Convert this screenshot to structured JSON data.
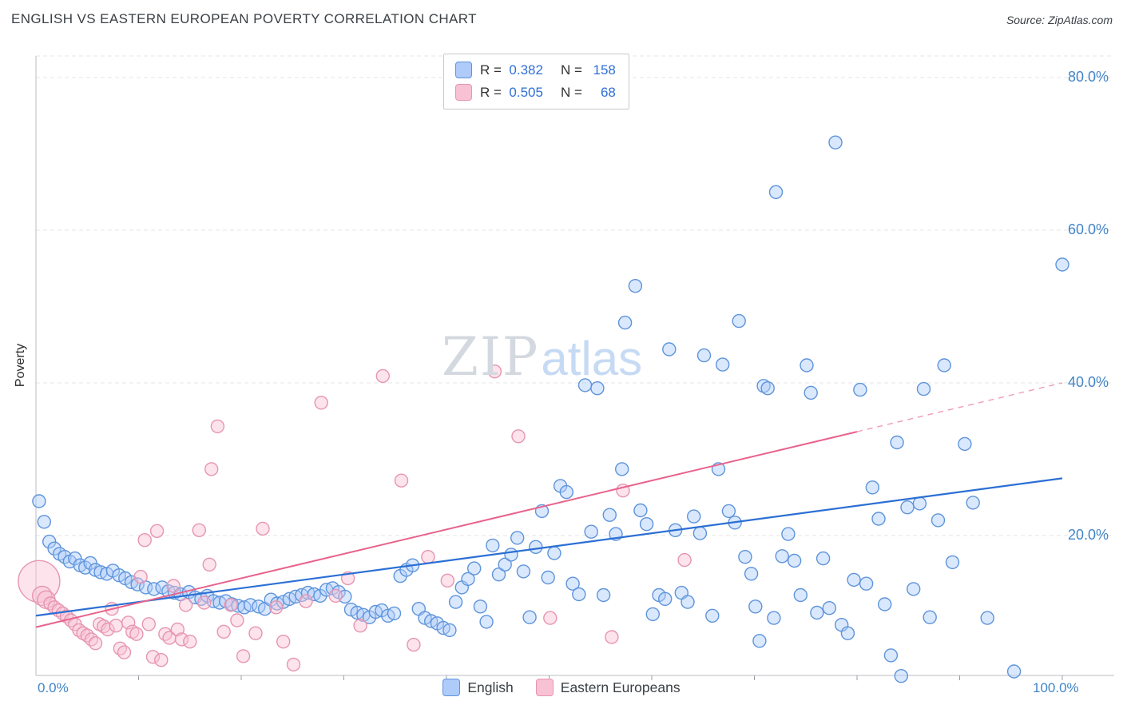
{
  "header": {
    "title": "ENGLISH VS EASTERN EUROPEAN POVERTY CORRELATION CHART",
    "source": "Source: ZipAtlas.com"
  },
  "legend_box": {
    "rows": [
      {
        "r_label": "R =",
        "r_value": "0.382",
        "n_label": "N =",
        "n_value": "158"
      },
      {
        "r_label": "R =",
        "r_value": "0.505",
        "n_label": "N =",
        "n_value": "68"
      }
    ]
  },
  "watermark": {
    "zip": "ZIP",
    "atlas": "atlas"
  },
  "axes": {
    "y_label": "Poverty",
    "x_min_label": "0.0%",
    "x_max_label": "100.0%",
    "y_ticks": [
      {
        "value": 80,
        "label": "80.0%"
      },
      {
        "value": 60,
        "label": "60.0%"
      },
      {
        "value": 40,
        "label": "40.0%"
      },
      {
        "value": 20,
        "label": "20.0%"
      }
    ]
  },
  "bottom_legend": [
    {
      "label": "English"
    },
    {
      "label": "Eastern Europeans"
    }
  ],
  "chart_data": {
    "type": "scatter",
    "title": "English vs Eastern European Poverty Correlation",
    "xlabel": "",
    "ylabel": "Poverty",
    "x_range": [
      0,
      100
    ],
    "y_range": [
      0,
      84
    ],
    "grid": "horizontal-dashed",
    "legend_position": "bottom-center",
    "series": [
      {
        "name": "English",
        "slug": "english",
        "R": 0.382,
        "N": 158,
        "fill": "#aecbfa",
        "stroke": "#5e94db",
        "points": [
          [
            0.3,
            24.5
          ],
          [
            0.8,
            21.8
          ],
          [
            1.3,
            19.2
          ],
          [
            1.8,
            18.3
          ],
          [
            2.3,
            17.6
          ],
          [
            2.8,
            17.2
          ],
          [
            3.3,
            16.6
          ],
          [
            3.8,
            17.0
          ],
          [
            4.3,
            16.1
          ],
          [
            4.8,
            15.8
          ],
          [
            5.3,
            16.4
          ],
          [
            5.8,
            15.5
          ],
          [
            6.3,
            15.2
          ],
          [
            6.9,
            15.0
          ],
          [
            7.5,
            15.4
          ],
          [
            8.1,
            14.8
          ],
          [
            8.7,
            14.4
          ],
          [
            9.3,
            13.9
          ],
          [
            9.9,
            13.6
          ],
          [
            10.7,
            13.2
          ],
          [
            11.5,
            13.0
          ],
          [
            12.3,
            13.2
          ],
          [
            12.9,
            12.7
          ],
          [
            13.5,
            12.5
          ],
          [
            14.1,
            12.3
          ],
          [
            14.9,
            12.6
          ],
          [
            15.5,
            11.9
          ],
          [
            16.1,
            11.7
          ],
          [
            16.7,
            12.1
          ],
          [
            17.3,
            11.4
          ],
          [
            17.9,
            11.2
          ],
          [
            18.5,
            11.4
          ],
          [
            19.1,
            11.0
          ],
          [
            19.7,
            10.8
          ],
          [
            20.3,
            10.6
          ],
          [
            20.9,
            10.9
          ],
          [
            21.7,
            10.7
          ],
          [
            22.3,
            10.4
          ],
          [
            22.9,
            11.6
          ],
          [
            23.5,
            11.1
          ],
          [
            24.1,
            11.3
          ],
          [
            24.7,
            11.7
          ],
          [
            25.3,
            12.0
          ],
          [
            25.9,
            12.2
          ],
          [
            26.5,
            12.5
          ],
          [
            27.1,
            12.3
          ],
          [
            27.7,
            12.1
          ],
          [
            28.3,
            12.9
          ],
          [
            28.9,
            13.1
          ],
          [
            29.5,
            12.6
          ],
          [
            30.1,
            12.0
          ],
          [
            30.7,
            10.3
          ],
          [
            31.3,
            9.9
          ],
          [
            31.9,
            9.6
          ],
          [
            32.5,
            9.3
          ],
          [
            33.1,
            10.0
          ],
          [
            33.7,
            10.2
          ],
          [
            34.3,
            9.5
          ],
          [
            34.9,
            9.8
          ],
          [
            35.5,
            14.7
          ],
          [
            36.1,
            15.5
          ],
          [
            36.7,
            16.1
          ],
          [
            37.3,
            10.4
          ],
          [
            37.9,
            9.2
          ],
          [
            38.5,
            8.8
          ],
          [
            39.1,
            8.5
          ],
          [
            39.7,
            7.9
          ],
          [
            40.3,
            7.6
          ],
          [
            40.9,
            11.3
          ],
          [
            41.5,
            13.2
          ],
          [
            42.1,
            14.3
          ],
          [
            42.7,
            15.7
          ],
          [
            43.3,
            10.7
          ],
          [
            43.9,
            8.7
          ],
          [
            44.5,
            18.7
          ],
          [
            45.1,
            14.9
          ],
          [
            45.7,
            16.2
          ],
          [
            46.3,
            17.5
          ],
          [
            46.9,
            19.7
          ],
          [
            47.5,
            15.3
          ],
          [
            48.1,
            9.3
          ],
          [
            48.7,
            18.5
          ],
          [
            49.3,
            23.2
          ],
          [
            49.9,
            14.5
          ],
          [
            50.5,
            17.7
          ],
          [
            51.1,
            26.5
          ],
          [
            51.7,
            25.7
          ],
          [
            52.3,
            13.7
          ],
          [
            52.9,
            12.3
          ],
          [
            53.5,
            39.7
          ],
          [
            54.1,
            20.5
          ],
          [
            54.7,
            39.3
          ],
          [
            55.3,
            12.2
          ],
          [
            55.9,
            22.7
          ],
          [
            56.5,
            20.2
          ],
          [
            57.1,
            28.7
          ],
          [
            57.4,
            47.9
          ],
          [
            58.4,
            52.7
          ],
          [
            58.9,
            23.3
          ],
          [
            59.5,
            21.5
          ],
          [
            60.1,
            9.7
          ],
          [
            60.7,
            12.2
          ],
          [
            61.3,
            11.7
          ],
          [
            61.7,
            44.4
          ],
          [
            62.3,
            20.7
          ],
          [
            62.9,
            12.5
          ],
          [
            63.5,
            11.3
          ],
          [
            64.1,
            22.5
          ],
          [
            64.7,
            20.3
          ],
          [
            65.1,
            43.6
          ],
          [
            65.9,
            9.5
          ],
          [
            66.5,
            28.7
          ],
          [
            66.9,
            42.4
          ],
          [
            67.5,
            23.2
          ],
          [
            68.1,
            21.7
          ],
          [
            68.5,
            48.1
          ],
          [
            69.1,
            17.2
          ],
          [
            69.7,
            15.0
          ],
          [
            70.1,
            10.7
          ],
          [
            70.5,
            6.2
          ],
          [
            70.9,
            39.6
          ],
          [
            71.3,
            39.3
          ],
          [
            71.9,
            9.2
          ],
          [
            72.1,
            65.0
          ],
          [
            72.7,
            17.3
          ],
          [
            73.3,
            20.2
          ],
          [
            73.9,
            16.7
          ],
          [
            74.5,
            12.2
          ],
          [
            75.1,
            42.3
          ],
          [
            75.5,
            38.7
          ],
          [
            76.1,
            9.9
          ],
          [
            76.7,
            17.0
          ],
          [
            77.3,
            10.5
          ],
          [
            77.9,
            71.5
          ],
          [
            78.5,
            8.3
          ],
          [
            79.1,
            7.2
          ],
          [
            79.7,
            14.2
          ],
          [
            80.3,
            39.1
          ],
          [
            80.9,
            13.7
          ],
          [
            81.5,
            26.3
          ],
          [
            82.1,
            22.2
          ],
          [
            82.7,
            11.0
          ],
          [
            83.3,
            4.3
          ],
          [
            83.9,
            32.2
          ],
          [
            84.3,
            1.6
          ],
          [
            84.9,
            23.7
          ],
          [
            85.5,
            13.0
          ],
          [
            86.1,
            24.2
          ],
          [
            86.5,
            39.2
          ],
          [
            87.1,
            9.3
          ],
          [
            87.9,
            22.0
          ],
          [
            88.5,
            42.3
          ],
          [
            89.3,
            16.5
          ],
          [
            90.5,
            32.0
          ],
          [
            91.3,
            24.3
          ],
          [
            92.7,
            9.2
          ],
          [
            95.3,
            2.2
          ],
          [
            100,
            55.5
          ]
        ]
      },
      {
        "name": "Eastern Europeans",
        "slug": "eastern-european",
        "R": 0.505,
        "N": 68,
        "fill": "#f9c2d4",
        "stroke": "#e795b1",
        "points": [
          [
            0.3,
            14.0,
            26
          ],
          [
            0.6,
            12.1,
            12
          ],
          [
            1.0,
            11.6,
            11
          ],
          [
            1.4,
            11.1
          ],
          [
            1.8,
            10.6
          ],
          [
            2.2,
            10.2
          ],
          [
            2.6,
            9.8
          ],
          [
            3.0,
            9.4
          ],
          [
            3.4,
            8.9
          ],
          [
            3.8,
            8.4
          ],
          [
            4.2,
            7.6
          ],
          [
            4.6,
            7.2
          ],
          [
            5.0,
            6.9
          ],
          [
            5.4,
            6.4
          ],
          [
            5.8,
            5.9
          ],
          [
            6.2,
            8.4
          ],
          [
            6.6,
            8.1
          ],
          [
            7.0,
            7.7
          ],
          [
            7.4,
            10.4
          ],
          [
            7.8,
            8.2
          ],
          [
            8.2,
            5.2
          ],
          [
            8.6,
            4.7
          ],
          [
            9.0,
            8.6
          ],
          [
            9.4,
            7.4
          ],
          [
            9.8,
            7.1
          ],
          [
            10.2,
            14.6
          ],
          [
            10.6,
            19.4
          ],
          [
            11.0,
            8.4
          ],
          [
            11.4,
            4.1
          ],
          [
            11.8,
            20.6
          ],
          [
            12.2,
            3.7
          ],
          [
            12.6,
            7.1
          ],
          [
            13.0,
            6.6
          ],
          [
            13.4,
            13.4
          ],
          [
            13.8,
            7.7
          ],
          [
            14.2,
            6.4
          ],
          [
            14.6,
            10.9
          ],
          [
            15.0,
            6.1
          ],
          [
            15.9,
            20.7
          ],
          [
            16.4,
            11.2
          ],
          [
            16.9,
            16.2
          ],
          [
            17.1,
            28.7
          ],
          [
            17.7,
            34.3
          ],
          [
            18.3,
            7.4
          ],
          [
            19.0,
            10.9
          ],
          [
            19.6,
            8.9
          ],
          [
            20.2,
            4.2
          ],
          [
            21.4,
            7.2
          ],
          [
            22.1,
            20.9
          ],
          [
            23.4,
            10.6
          ],
          [
            24.1,
            6.1
          ],
          [
            25.1,
            3.1
          ],
          [
            26.3,
            11.4
          ],
          [
            27.8,
            37.4
          ],
          [
            29.2,
            12.1
          ],
          [
            30.4,
            14.4
          ],
          [
            31.6,
            8.2
          ],
          [
            33.8,
            40.9
          ],
          [
            35.6,
            27.2
          ],
          [
            36.8,
            5.7
          ],
          [
            38.2,
            17.2
          ],
          [
            40.1,
            14.1
          ],
          [
            44.7,
            41.5
          ],
          [
            47.0,
            33.0
          ],
          [
            50.1,
            9.2
          ],
          [
            57.2,
            25.9
          ],
          [
            56.1,
            6.7
          ],
          [
            63.2,
            16.8
          ]
        ]
      }
    ],
    "trend_lines": [
      {
        "slug": "english",
        "color": "#2b6fd4",
        "width": 2.2,
        "x1": 0,
        "y1": 9.5,
        "x2": 100,
        "y2": 27.5
      },
      {
        "slug": "eastern-european",
        "color": "#e8638c",
        "width": 2,
        "x1": 0,
        "y1": 8.0,
        "x2": 80,
        "y2": 33.6,
        "dash": {
          "x2": 100,
          "y2": 40.0,
          "color": "#f09cb4"
        }
      }
    ]
  }
}
